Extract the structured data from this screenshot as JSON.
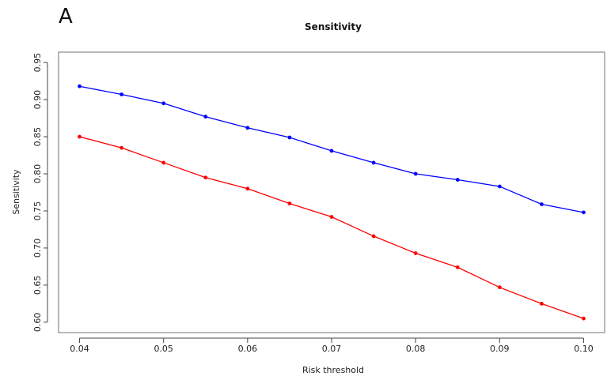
{
  "panel_label": "A",
  "chart_data": {
    "type": "line",
    "title": "Sensitivity",
    "xlabel": "Risk threshold",
    "ylabel": "Sensitivity",
    "x": [
      0.04,
      0.045,
      0.05,
      0.055,
      0.06,
      0.065,
      0.07,
      0.075,
      0.08,
      0.085,
      0.09,
      0.095,
      0.1
    ],
    "xticks": [
      "0.04",
      "0.05",
      "0.06",
      "0.07",
      "0.08",
      "0.09",
      "0.10"
    ],
    "xtick_values": [
      0.04,
      0.05,
      0.06,
      0.07,
      0.08,
      0.09,
      0.1
    ],
    "yticks": [
      "0.60",
      "0.65",
      "0.70",
      "0.75",
      "0.80",
      "0.85",
      "0.90",
      "0.95"
    ],
    "ytick_values": [
      0.6,
      0.65,
      0.7,
      0.75,
      0.8,
      0.85,
      0.9,
      0.95
    ],
    "xlim": [
      0.0375,
      0.1025
    ],
    "ylim": [
      0.586,
      0.964
    ],
    "grid": false,
    "series": [
      {
        "color": "#0000ff",
        "values": [
          0.918,
          0.907,
          0.895,
          0.877,
          0.862,
          0.849,
          0.831,
          0.815,
          0.8,
          0.792,
          0.783,
          0.759,
          0.748
        ]
      },
      {
        "color": "#ff0000",
        "values": [
          0.85,
          0.835,
          0.815,
          0.795,
          0.78,
          0.76,
          0.742,
          0.716,
          0.693,
          0.674,
          0.647,
          0.625,
          0.605
        ]
      }
    ]
  }
}
